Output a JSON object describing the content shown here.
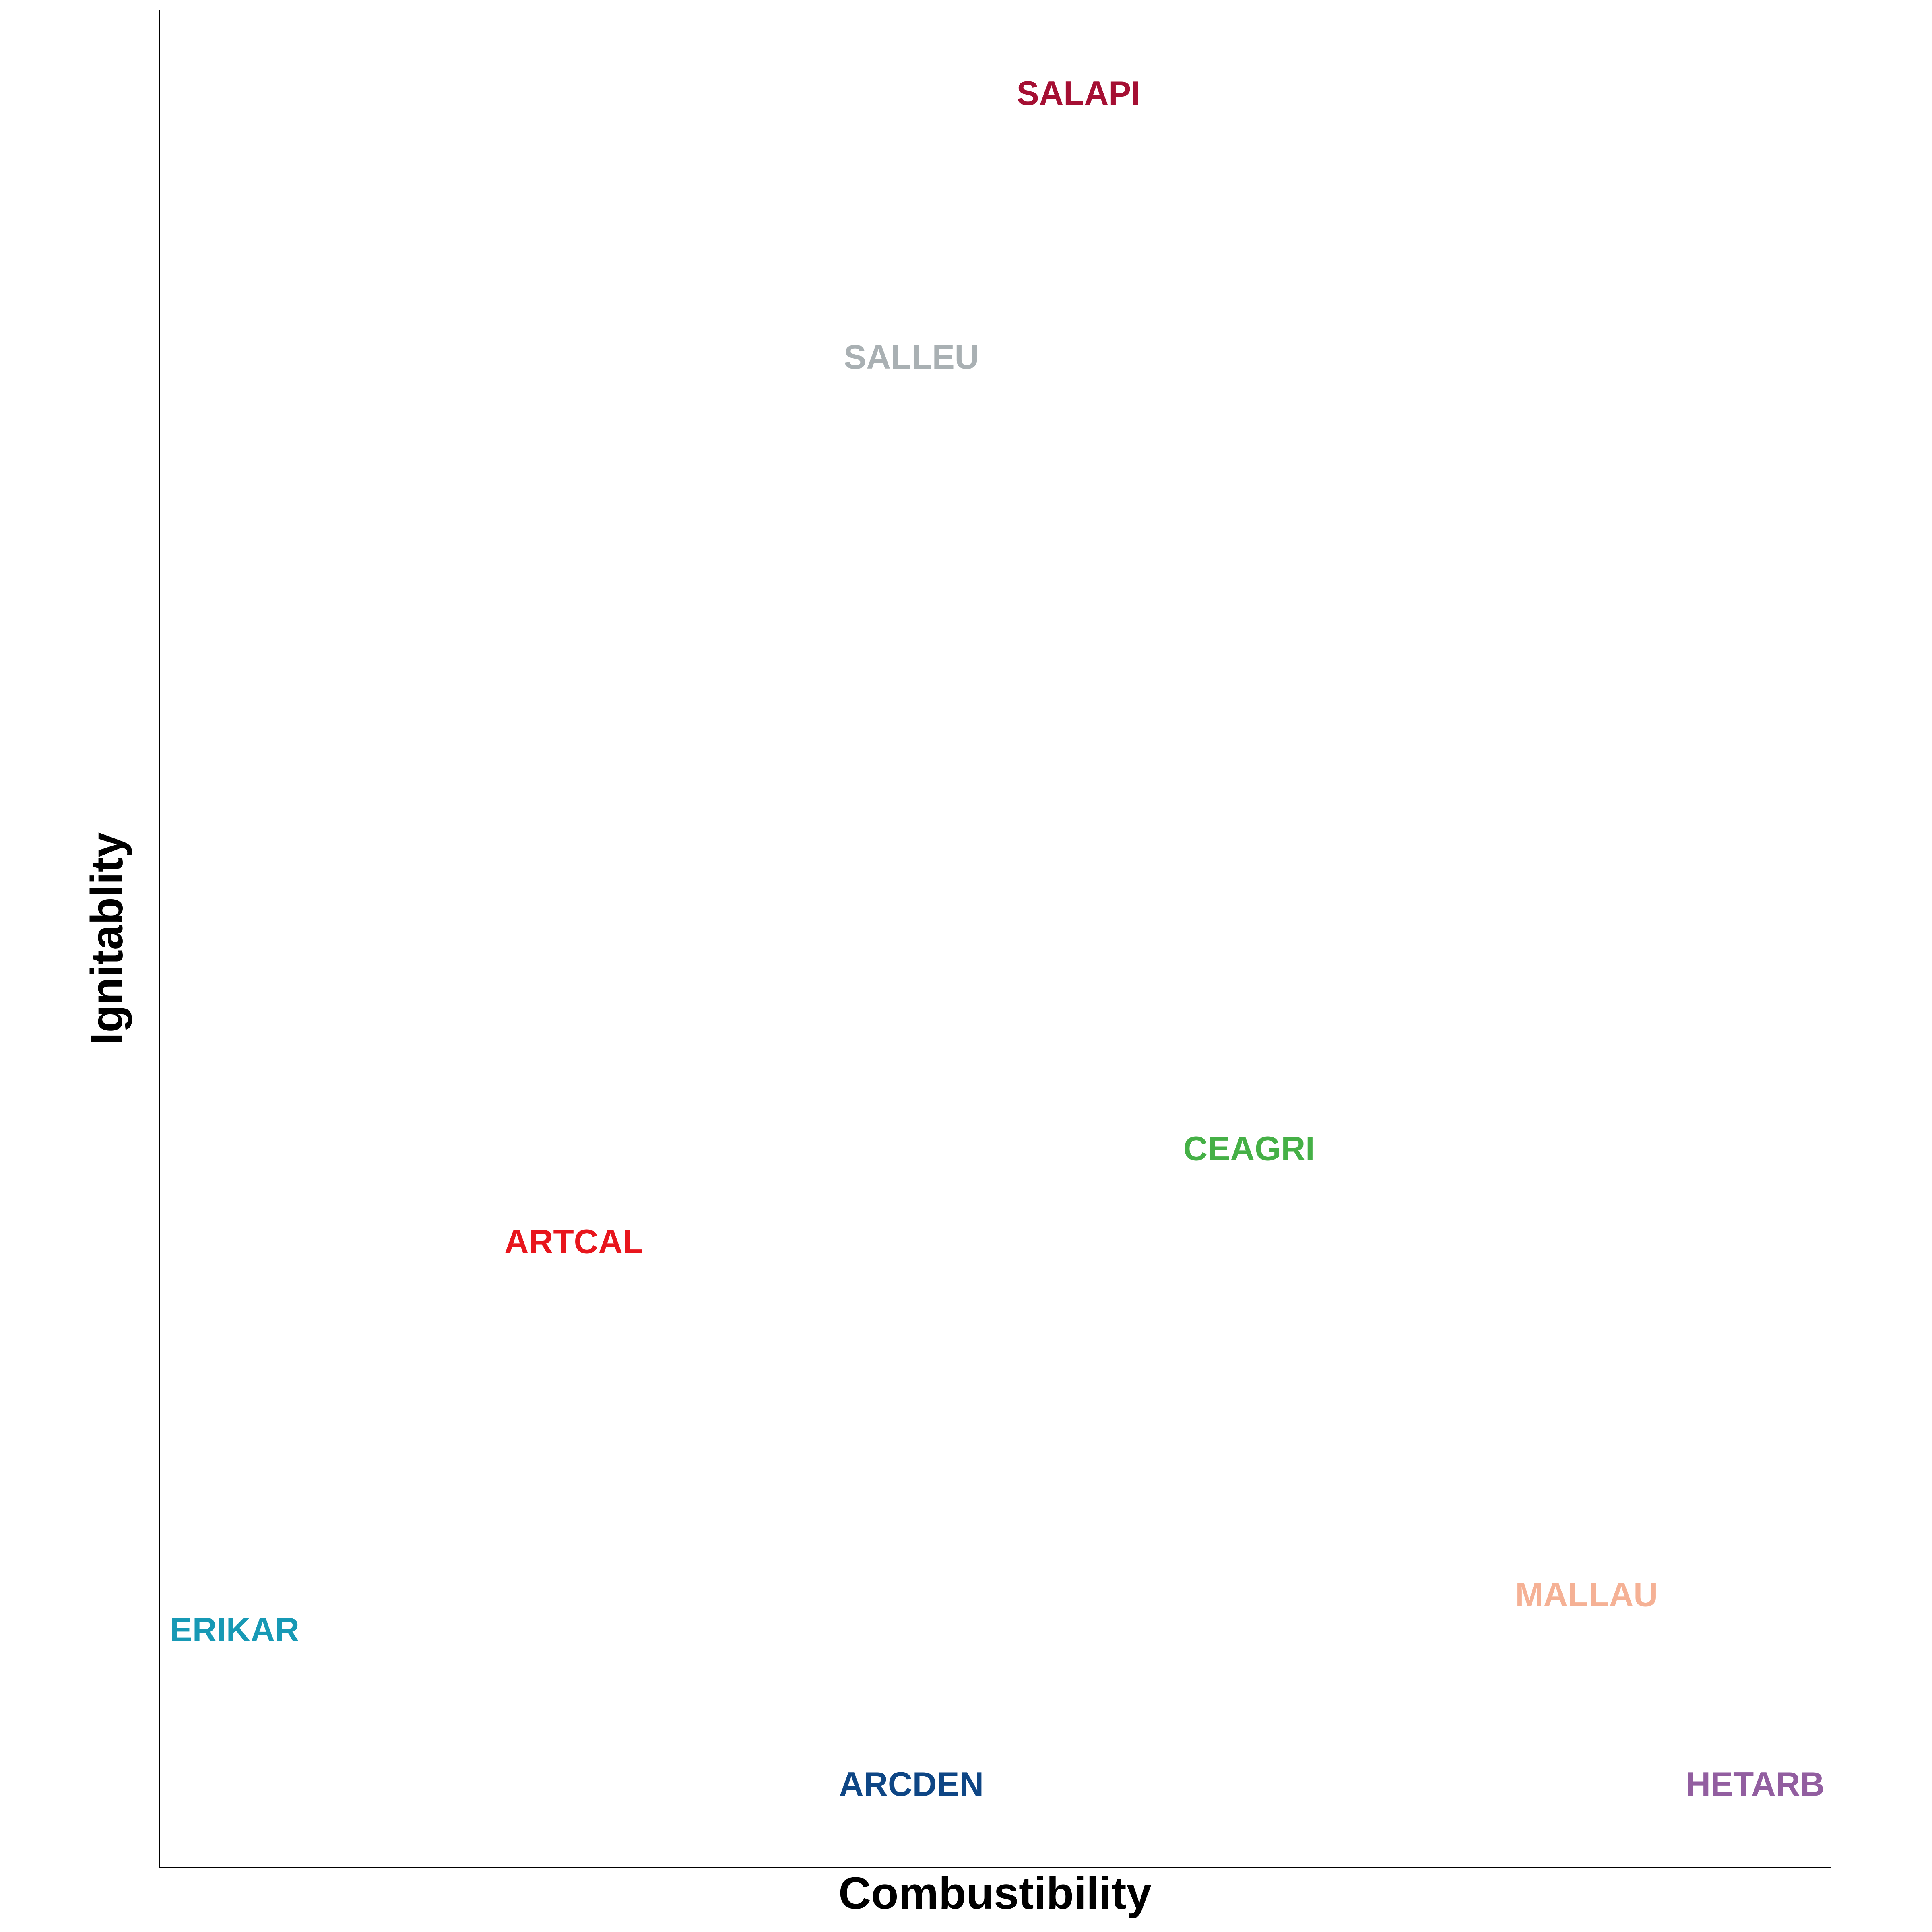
{
  "chart_data": {
    "type": "scatter",
    "title": "",
    "xlabel": "Combustibility",
    "ylabel": "Ignitablity",
    "xlim": [
      0,
      100
    ],
    "ylim": [
      0,
      100
    ],
    "grid": false,
    "legend": "none",
    "points": [
      {
        "label": "SALAPI",
        "x": 55,
        "y": 95.5,
        "color": "#A50F33"
      },
      {
        "label": "SALLEU",
        "x": 45,
        "y": 81.3,
        "color": "#A9B0B3"
      },
      {
        "label": "CEAGRI",
        "x": 65.2,
        "y": 38.7,
        "color": "#45B046"
      },
      {
        "label": "ARTCAL",
        "x": 24.8,
        "y": 33.7,
        "color": "#E8151C"
      },
      {
        "label": "MALLAU",
        "x": 85.4,
        "y": 14.7,
        "color": "#F5B195"
      },
      {
        "label": "ERIKAR",
        "x": 4.5,
        "y": 12.8,
        "color": "#1799B5"
      },
      {
        "label": "ARCDEN",
        "x": 45,
        "y": 4.5,
        "color": "#0E4685"
      },
      {
        "label": "HETARB",
        "x": 95.5,
        "y": 4.5,
        "color": "#925EA0"
      }
    ]
  }
}
